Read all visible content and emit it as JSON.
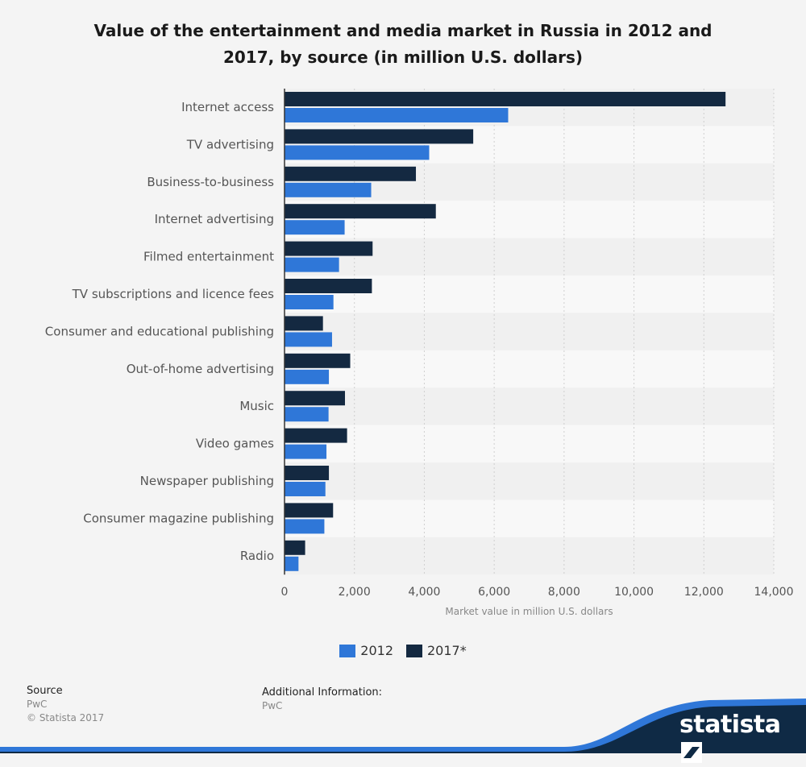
{
  "header": {
    "title_line1": "Value of the entertainment and media market in Russia in 2012 and",
    "title_line2": "2017, by source (in million U.S. dollars)"
  },
  "chart_data": {
    "type": "bar",
    "orientation": "horizontal",
    "categories": [
      "Internet access",
      "TV advertising",
      "Business-to-business",
      "Internet advertising",
      "Filmed entertainment",
      "TV subscriptions and licence fees",
      "Consumer and educational publishing",
      "Out-of-home advertising",
      "Music",
      "Video games",
      "Newspaper publishing",
      "Consumer magazine publishing",
      "Radio"
    ],
    "series": [
      {
        "name": "2017*",
        "color": "#142941",
        "values": [
          12620,
          5400,
          3760,
          4330,
          2520,
          2500,
          1100,
          1880,
          1730,
          1790,
          1270,
          1390,
          590
        ]
      },
      {
        "name": "2012",
        "color": "#2f77d8",
        "values": [
          6400,
          4140,
          2480,
          1720,
          1560,
          1400,
          1360,
          1270,
          1260,
          1200,
          1170,
          1140,
          400
        ]
      }
    ],
    "xlabel": "Market value in million U.S. dollars",
    "xlim": [
      0,
      14000
    ],
    "xticks": [
      "0",
      "2,000",
      "4,000",
      "6,000",
      "8,000",
      "10,000",
      "12,000",
      "14,000"
    ],
    "grid": true,
    "legend_position": "bottom-center",
    "legend": [
      {
        "label": "2012",
        "color": "#2f77d8"
      },
      {
        "label": "2017*",
        "color": "#142941"
      }
    ]
  },
  "footer": {
    "source_heading": "Source",
    "source_name": "PwC",
    "copyright": "© Statista 2017",
    "addinfo_heading": "Additional Information:",
    "addinfo_text": "PwC",
    "brand": "statista"
  }
}
